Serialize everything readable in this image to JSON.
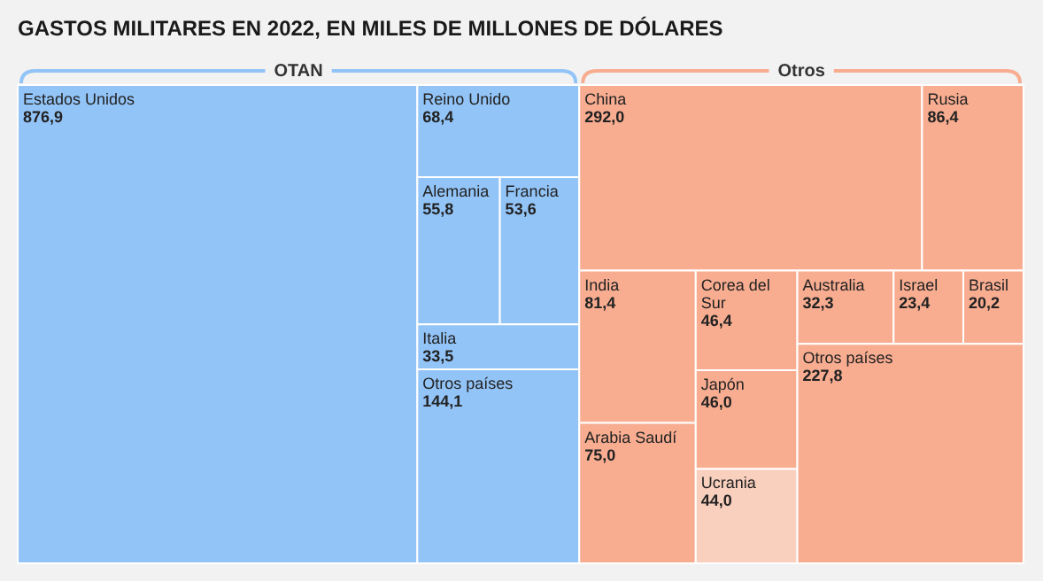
{
  "chart_data": {
    "type": "other",
    "title": "GASTOS MILITARES EN 2022, EN MILES DE MILLONES DE DÓLARES",
    "categories": [
      "Estados Unidos",
      "Reino Unido",
      "Alemania",
      "Francia",
      "Italia",
      "Otros países",
      "China",
      "Rusia",
      "India",
      "Arabia Saudí",
      "Corea del Sur",
      "Japón",
      "Ucrania",
      "Australia",
      "Israel",
      "Brasil",
      "Otros países"
    ],
    "series": [
      {
        "name": "OTAN",
        "color": "#93c4f7",
        "values": [
          876.9,
          68.4,
          55.8,
          53.6,
          33.5,
          144.1,
          null,
          null,
          null,
          null,
          null,
          null,
          null,
          null,
          null,
          null,
          null
        ],
        "value_labels": [
          "876,9",
          "68,4",
          "55,8",
          "53,6",
          "33,5",
          "144,1",
          null,
          null,
          null,
          null,
          null,
          null,
          null,
          null,
          null,
          null,
          null
        ]
      },
      {
        "name": "Otros",
        "color": "#f8ad91",
        "colors": [
          null,
          null,
          null,
          null,
          null,
          null,
          "#f8ad91",
          "#f8ad91",
          "#f8ad91",
          "#f8ad91",
          "#f8ad91",
          "#f8ad91",
          "#f9cfbe",
          "#f8ad91",
          "#f8ad91",
          "#f8ad91",
          "#f8ad91"
        ],
        "values": [
          null,
          null,
          null,
          null,
          null,
          null,
          292.0,
          86.4,
          81.4,
          75.0,
          46.4,
          46.0,
          44.0,
          32.3,
          23.4,
          20.2,
          227.8
        ],
        "value_labels": [
          null,
          null,
          null,
          null,
          null,
          null,
          "292,0",
          "86,4",
          "81,4",
          "75,0",
          "46,4",
          "46,0",
          "44,0",
          "32,3",
          "23,4",
          "20,2",
          "227,8"
        ]
      }
    ]
  }
}
